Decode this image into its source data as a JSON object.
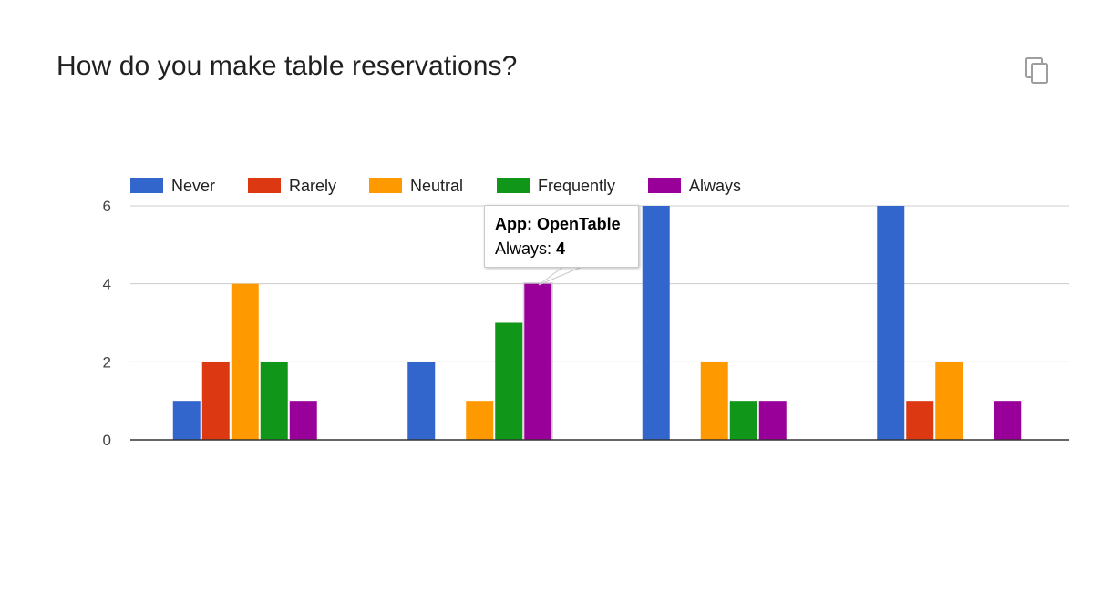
{
  "title": "How do you make table reservations?",
  "icons": {
    "copy": "copy-icon"
  },
  "tooltip": {
    "heading": "App: OpenTable",
    "series_label": "Always:",
    "value": "4"
  },
  "chart_data": {
    "type": "bar",
    "title": "How do you make table reservations?",
    "xlabel": "",
    "ylabel": "",
    "ylim": [
      0,
      6
    ],
    "yticks": [
      0,
      2,
      4,
      6
    ],
    "grid": true,
    "legend_position": "top-left",
    "categories": [
      "",
      "",
      "",
      ""
    ],
    "series": [
      {
        "name": "Never",
        "color": "#3366cc",
        "values": [
          1,
          2,
          6,
          6
        ]
      },
      {
        "name": "Rarely",
        "color": "#dc3912",
        "values": [
          2,
          0,
          0,
          1
        ]
      },
      {
        "name": "Neutral",
        "color": "#ff9900",
        "values": [
          4,
          1,
          2,
          2
        ]
      },
      {
        "name": "Frequently",
        "color": "#109618",
        "values": [
          2,
          3,
          1,
          0
        ]
      },
      {
        "name": "Always",
        "color": "#990099",
        "values": [
          1,
          4,
          1,
          1
        ]
      }
    ]
  }
}
